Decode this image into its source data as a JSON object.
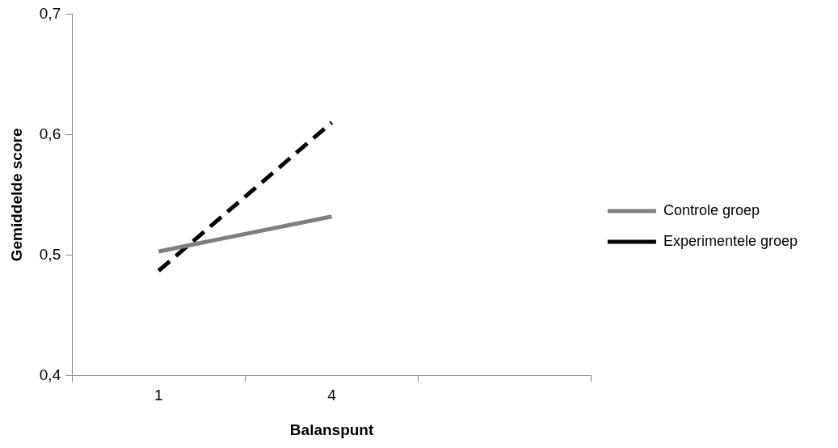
{
  "chart_data": {
    "type": "line",
    "xlabel": "Balanspunt",
    "ylabel": "Gemiddelde score",
    "categories": [
      "1",
      "4",
      null
    ],
    "series": [
      {
        "name": "Controle groep",
        "color": "#7f7f7f",
        "values": [
          0.503,
          0.532,
          null
        ],
        "line_style": "solid"
      },
      {
        "name": "Experimentele groep",
        "color": "#000000",
        "values": [
          0.487,
          0.61,
          null
        ],
        "line_style": "dashed"
      }
    ],
    "ylim": [
      0.4,
      0.7
    ],
    "yticks": [
      {
        "value": 0.4,
        "label": "0,4"
      },
      {
        "value": 0.5,
        "label": "0,5"
      },
      {
        "value": 0.6,
        "label": "0,6"
      },
      {
        "value": 0.7,
        "label": "0,7"
      }
    ],
    "grid": false,
    "legend": "right",
    "marker": "none"
  }
}
